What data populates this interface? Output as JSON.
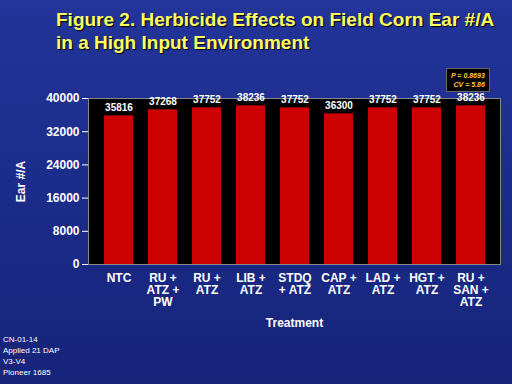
{
  "chart_data": {
    "type": "bar",
    "title": "Figure 2.  Herbicide Effects on Field Corn Ear #/A in a High Input Environment",
    "categories": [
      "NTC",
      "RU +\nATZ +\nPW",
      "RU +\nATZ",
      "LIB +\nATZ",
      "STDQ\n+ ATZ",
      "CAP +\nATZ",
      "LAD +\nATZ",
      "HGT +\nATZ",
      "RU +\nSAN +\nATZ"
    ],
    "values": [
      35816,
      37268,
      37752,
      38236,
      37752,
      36300,
      37752,
      37752,
      38236
    ],
    "color": "#cc0000",
    "ylim": [
      0,
      40000
    ],
    "yticks": [
      0,
      8000,
      16000,
      24000,
      32000,
      40000
    ],
    "ylabel": "Ear #/A",
    "xlabel": "Treatment",
    "data_labels": true,
    "annotations": [
      "P = 0.8693",
      "CV = 5.86"
    ],
    "notes": [
      "CN-01-14",
      "Applied 21 DAP",
      "V3-V4",
      "Pioneer 1685"
    ]
  }
}
